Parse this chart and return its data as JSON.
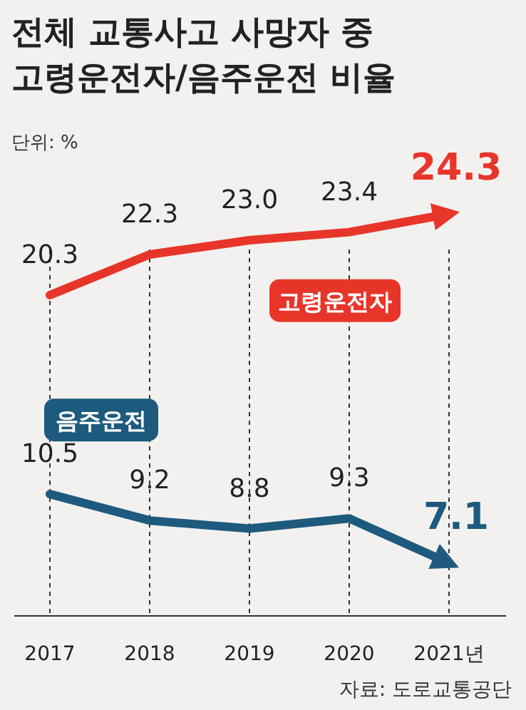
{
  "chart_data": {
    "type": "line",
    "title": "전체 교통사고 사망자 중\n고령운전자/음주운전 비율",
    "annotations": [
      "단위: %",
      "자료: 도로교통공단"
    ],
    "categories": [
      "2017",
      "2018",
      "2019",
      "2020",
      "2021년"
    ],
    "series": [
      {
        "name": "고령운전자",
        "color": "#e8352a",
        "values": [
          20.3,
          22.3,
          23.0,
          23.4,
          24.3
        ],
        "value_labels": [
          "20.3",
          "22.3",
          "23.0",
          "23.4",
          "24.3"
        ]
      },
      {
        "name": "음주운전",
        "color": "#1d5a7e",
        "values": [
          10.5,
          9.2,
          8.8,
          9.3,
          7.1
        ],
        "value_labels": [
          "10.5",
          "9.2",
          "8.8",
          "9.3",
          "7.1"
        ]
      }
    ],
    "grid": "x"
  }
}
